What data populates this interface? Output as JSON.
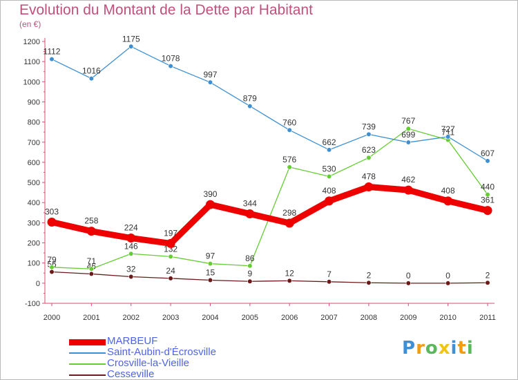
{
  "header": {
    "title": "Evolution du Montant de la Dette par Habitant",
    "subtitle": "(en €)"
  },
  "logo": {
    "text": "Proxiti",
    "letters": [
      "P",
      "r",
      "o",
      "x",
      "i",
      "t",
      "i"
    ],
    "colors": [
      "#3d8fd8",
      "#f39c12",
      "#5cb85c",
      "#f1c40f",
      "#3d8fd8",
      "#f39c12",
      "#5cb85c"
    ]
  },
  "chart_data": {
    "type": "line",
    "title": "Evolution du Montant de la Dette par Habitant",
    "subtitle": "(en €)",
    "xlabel": "",
    "ylabel": "",
    "x": [
      "2000",
      "2001",
      "2002",
      "2003",
      "2004",
      "2005",
      "2006",
      "2007",
      "2008",
      "2009",
      "2010",
      "2011"
    ],
    "ylim": [
      -100,
      1200
    ],
    "yticks": [
      -100,
      0,
      100,
      200,
      300,
      400,
      500,
      600,
      700,
      800,
      900,
      1000,
      1100,
      1200
    ],
    "grid": false,
    "legend_position": "bottom-left",
    "series": [
      {
        "name": "MARBEUF",
        "color": "#ee0000",
        "values": [
          303,
          258,
          224,
          197,
          390,
          344,
          298,
          408,
          478,
          462,
          408,
          361
        ],
        "labels": [
          "303",
          "258",
          "224",
          "197",
          "390",
          "344",
          "298",
          "408",
          "478",
          "462",
          "408",
          "361"
        ]
      },
      {
        "name": "Saint-Aubin-d'Écrosville",
        "color": "#3f8fd0",
        "values": [
          1112,
          1016,
          1175,
          1078,
          997,
          879,
          760,
          662,
          739,
          699,
          727,
          607
        ],
        "labels": [
          "1112",
          "1016",
          "1175",
          "1078",
          "997",
          "879",
          "760",
          "662",
          "739",
          "699",
          "727",
          "607"
        ]
      },
      {
        "name": "Crosville-la-Vieille",
        "color": "#66cc33",
        "values": [
          79,
          71,
          146,
          132,
          97,
          86,
          576,
          530,
          623,
          767,
          711,
          440
        ],
        "labels": [
          "79",
          "71",
          "146",
          "132",
          "97",
          "86",
          "576",
          "530",
          "623",
          "767",
          "711",
          "440"
        ]
      },
      {
        "name": "Cesseville",
        "color": "#6b1a1a",
        "values": [
          56,
          46,
          32,
          24,
          15,
          9,
          12,
          7,
          2,
          0,
          0,
          2
        ],
        "labels": [
          "56",
          "46",
          "32",
          "24",
          "15",
          "9",
          "12",
          "7",
          "2",
          "0",
          "0",
          "2"
        ]
      }
    ]
  }
}
